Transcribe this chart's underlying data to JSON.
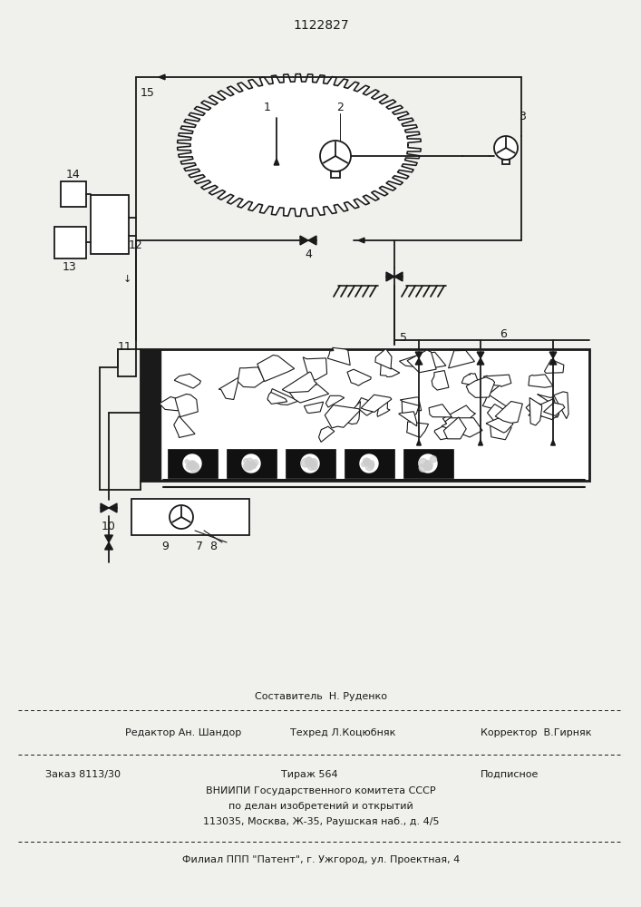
{
  "patent_number": "1122827",
  "bg_color": "#f0f0ec",
  "line_color": "#1a1a1a",
  "footer_text_sestavitel": "Составитель  Н. Руденко",
  "footer_text_redaktor": "Редактор Ан. Шандор",
  "footer_text_tehred": "Техред Л.Коцюбняк",
  "footer_text_korrektor": "Корректор  В.Гирняк",
  "footer_text1": "Заказ 8113/30",
  "footer_text2": "Тираж 564",
  "footer_text3": "Подписное",
  "footer_text4": "ВНИИПИ Государственного комитета СССР",
  "footer_text5": "по делан изобретений и открытий",
  "footer_text6": "113035, Москва, Ж-35, Раушская наб., д. 4/5",
  "footer_text7": "Филиал ППП \"Патент\", г. Ужгород, ул. Проектная, 4"
}
